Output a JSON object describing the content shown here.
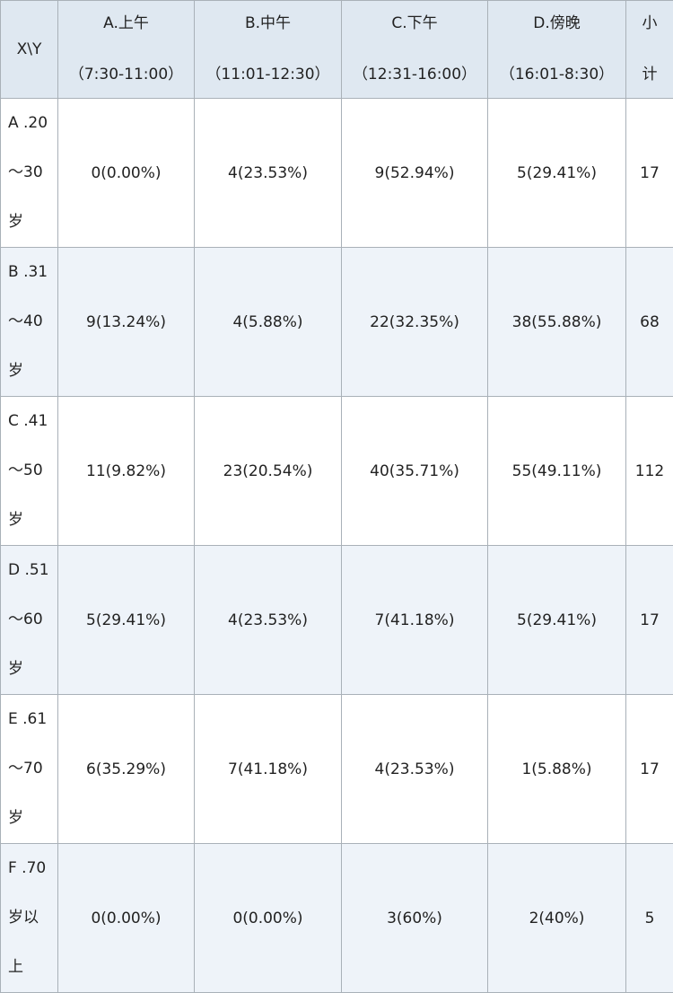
{
  "table": {
    "corner": "X\\Y",
    "columns": [
      {
        "label": "A.上午",
        "time": "（7:30-11:00）"
      },
      {
        "label": "B.中午",
        "time": "（11:01-12:30）"
      },
      {
        "label": "C.下午",
        "time": "（12:31-16:00）"
      },
      {
        "label": "D.傍晚",
        "time": "（16:01-8:30）"
      },
      {
        "label": "小",
        "time": "计"
      }
    ],
    "rows": [
      {
        "label_lines": [
          "A .20",
          "～30",
          "岁"
        ],
        "values": [
          "0(0.00%)",
          "4(23.53%)",
          "9(52.94%)",
          "5(29.41%)"
        ],
        "subtotal": "17"
      },
      {
        "label_lines": [
          "B .31",
          "～40",
          "岁"
        ],
        "values": [
          "9(13.24%)",
          "4(5.88%)",
          "22(32.35%)",
          "38(55.88%)"
        ],
        "subtotal": "68"
      },
      {
        "label_lines": [
          "C .41",
          "～50",
          "岁"
        ],
        "values": [
          "11(9.82%)",
          "23(20.54%)",
          "40(35.71%)",
          "55(49.11%)"
        ],
        "subtotal": "112"
      },
      {
        "label_lines": [
          "D .51",
          "～60",
          "岁"
        ],
        "values": [
          "5(29.41%)",
          "4(23.53%)",
          "7(41.18%)",
          "5(29.41%)"
        ],
        "subtotal": "17"
      },
      {
        "label_lines": [
          "E .61",
          "～70",
          "岁"
        ],
        "values": [
          "6(35.29%)",
          "7(41.18%)",
          "4(23.53%)",
          "1(5.88%)"
        ],
        "subtotal": "17"
      },
      {
        "label_lines": [
          "F .70",
          "岁以",
          "上"
        ],
        "values": [
          "0(0.00%)",
          "0(0.00%)",
          "3(60%)",
          "2(40%)"
        ],
        "subtotal": "5"
      }
    ]
  }
}
